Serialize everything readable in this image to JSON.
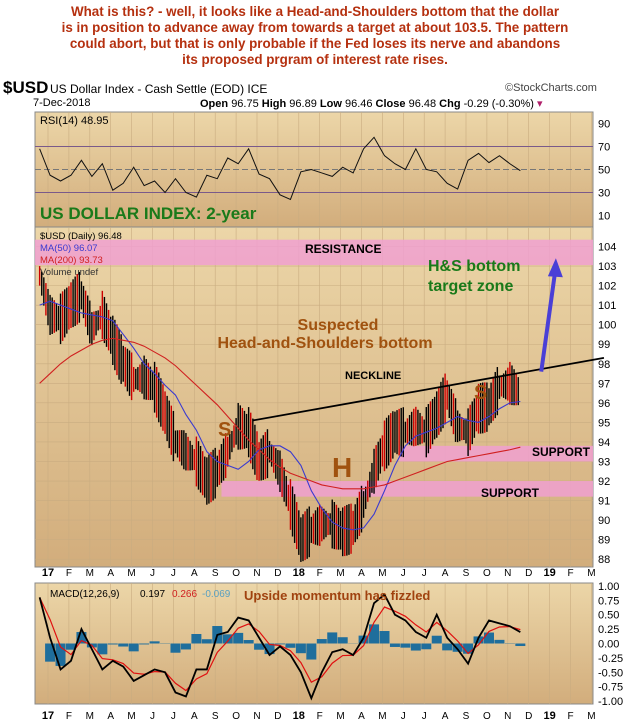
{
  "commentary": {
    "lines": [
      "What is this? - well, it looks like a Head-and-Shoulders bottom that the dollar",
      "is in position to advance away from towards a target at about 103.5. The pattern",
      "could abort, but that is only probable if the Fed loses its nerve and abandons",
      "its proposed prgram of interest rate rises."
    ]
  },
  "header": {
    "symbol": "$USD",
    "name": "US Dollar Index - Cash Settle (EOD) ICE",
    "source": "©StockCharts.com",
    "date": "7-Dec-2018",
    "open_label": "Open",
    "open": "96.75",
    "high_label": "High",
    "high": "96.89",
    "low_label": "Low",
    "low": "96.46",
    "close_label": "Close",
    "close": "96.48",
    "chg_label": "Chg",
    "chg": "-0.29 (-0.30%)"
  },
  "colors": {
    "accent_green": "#1a7a1a",
    "annotation_brown": "#a0520f",
    "band_pink": "#f0a0d0",
    "ma50": "#3a3ad0",
    "ma200": "#d02020",
    "histogram": "#1f6e9c"
  },
  "chart_data": [
    {
      "type": "line",
      "title": "RSI(14) 48.95",
      "ylim": [
        0,
        100
      ],
      "yticks": [
        90,
        70,
        50,
        30,
        10
      ],
      "start_month": -0.4,
      "step_months": 0.5,
      "series": [
        {
          "name": "RSI(14)",
          "values": [
            68,
            45,
            40,
            45,
            58,
            44,
            55,
            32,
            38,
            52,
            36,
            40,
            30,
            42,
            30,
            26,
            45,
            42,
            60,
            55,
            68,
            46,
            42,
            28,
            24,
            48,
            50,
            47,
            44,
            52,
            47,
            68,
            78,
            62,
            55,
            50,
            68,
            50,
            48,
            38,
            33,
            58,
            64,
            56,
            62,
            55,
            49
          ]
        }
      ]
    },
    {
      "type": "line",
      "title": "US DOLLAR INDEX: 2-year",
      "ylim": [
        87.6,
        105
      ],
      "yticks": [
        88,
        89,
        90,
        91,
        92,
        93,
        94,
        95,
        96,
        97,
        98,
        99,
        100,
        101,
        102,
        103,
        104
      ],
      "start_month": -0.4,
      "step_months": 0.5,
      "legend": [
        "$USD (Daily) 96.48",
        "MA(50) 96.07",
        "MA(200) 93.73",
        "Volume undef"
      ],
      "series": [
        {
          "name": "$USD (Daily)",
          "values": [
            102.5,
            100.5,
            100.3,
            101.0,
            101.5,
            99.8,
            100.5,
            99.2,
            98.0,
            97.2,
            97.3,
            96.8,
            95.5,
            94.0,
            93.5,
            93.0,
            92.0,
            92.5,
            93.5,
            94.8,
            94.5,
            93.0,
            93.5,
            92.5,
            90.8,
            89.0,
            89.5,
            89.8,
            89.8,
            89.4,
            89.6,
            90.8,
            92.5,
            93.8,
            94.5,
            94.5,
            94.8,
            94.5,
            95.4,
            96.4,
            94.8,
            94.5,
            95.7,
            95.8,
            96.8,
            97.0,
            96.5
          ]
        },
        {
          "name": "MA(50)",
          "values": [
            101,
            101.2,
            101,
            100.8,
            100.6,
            100.5,
            100.4,
            100.2,
            99.5,
            98.8,
            98,
            97.5,
            96.9,
            96.4,
            95.4,
            94.6,
            93.5,
            93.0,
            92.8,
            92.6,
            93.0,
            93.6,
            93.8,
            93.8,
            93.5,
            92.8,
            91.5,
            90.6,
            89.9,
            89.6,
            89.5,
            89.6,
            90.3,
            91.5,
            92.8,
            93.8,
            94.3,
            94.5,
            94.7,
            95,
            95.3,
            95.1,
            95.0,
            95.3,
            95.7,
            96.0,
            96.07
          ]
        },
        {
          "name": "MA(200)",
          "values": [
            97,
            97.5,
            98,
            98.4,
            98.7,
            99,
            99.2,
            99.3,
            99.2,
            99.1,
            98.9,
            98.6,
            98.3,
            97.9,
            97.4,
            96.9,
            96.4,
            95.9,
            95.3,
            94.7,
            94.1,
            93.6,
            93.1,
            92.7,
            92.4,
            92.2,
            92.0,
            91.8,
            91.7,
            91.6,
            91.6,
            91.6,
            91.7,
            91.8,
            92.0,
            92.2,
            92.4,
            92.6,
            92.8,
            93.0,
            93.1,
            93.2,
            93.3,
            93.4,
            93.5,
            93.6,
            93.73
          ]
        }
      ],
      "annotations": {
        "resistance": {
          "label": "RESISTANCE",
          "range": [
            103.05,
            104.35
          ]
        },
        "support_upper": {
          "label": "SUPPORT",
          "range": [
            93.0,
            93.8
          ],
          "from_month": 16.8
        },
        "support_lower": {
          "label": "SUPPORT",
          "range": [
            91.2,
            92.0
          ],
          "from_month": 8.3
        },
        "neckline": {
          "label": "NECKLINE",
          "from": [
            9.8,
            95.1
          ],
          "to": [
            26.6,
            98.3
          ]
        },
        "target": {
          "label_line1": "H&S bottom",
          "label_line2": "target zone",
          "from": [
            23.6,
            97.6
          ],
          "to": [
            24.3,
            103.4
          ]
        },
        "pattern_line1": "Suspected",
        "pattern_line2": "Head-and-Shoulders bottom",
        "left_shoulder": "S",
        "head": "H",
        "right_shoulder": "S"
      }
    },
    {
      "type": "line",
      "title": "MACD(12,26,9)",
      "values_text": [
        "0.197",
        "0.266",
        "-0.069"
      ],
      "annotation": "Upside momentum has fizzled",
      "ylim": [
        -1.05,
        1.05
      ],
      "yticks": [
        "1.00",
        "0.75",
        "0.50",
        "0.25",
        "0.00",
        "-0.25",
        "-0.50",
        "-0.75",
        "-1.00"
      ],
      "start_month": -0.4,
      "step_months": 0.5,
      "series": [
        {
          "name": "MACD",
          "values": [
            0.8,
            0.1,
            -0.45,
            -0.3,
            0.25,
            -0.1,
            -0.45,
            -0.3,
            -0.4,
            -0.65,
            -0.55,
            -0.45,
            -0.5,
            -0.85,
            -0.92,
            -0.45,
            -0.45,
            0.15,
            0.2,
            0.45,
            0.4,
            0.1,
            -0.2,
            -0.05,
            -0.2,
            -0.5,
            -0.95,
            -0.5,
            -0.15,
            -0.1,
            -0.2,
            0.1,
            0.7,
            0.85,
            0.5,
            0.4,
            0.2,
            0.1,
            0.5,
            0.1,
            -0.1,
            -0.35,
            0.1,
            0.4,
            0.35,
            0.3,
            0.197
          ]
        }
      ]
    }
  ],
  "x_axis": {
    "labels": [
      "17",
      "F",
      "M",
      "A",
      "M",
      "J",
      "J",
      "A",
      "S",
      "O",
      "N",
      "D",
      "18",
      "F",
      "M",
      "A",
      "M",
      "J",
      "J",
      "A",
      "S",
      "O",
      "N",
      "D",
      "19",
      "F",
      "M"
    ]
  }
}
